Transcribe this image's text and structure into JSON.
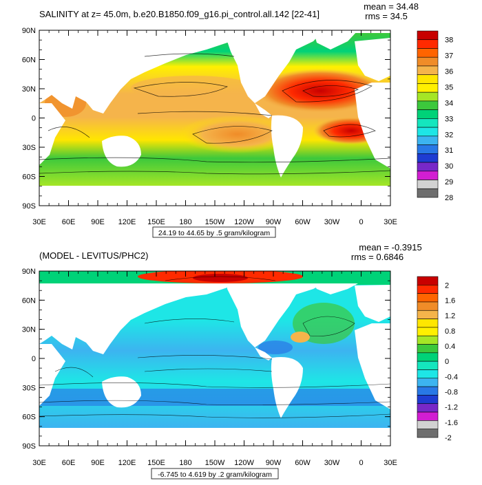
{
  "panels": [
    {
      "id": "top",
      "title": "SALINITY at z=  45.0m, b.e20.B1850.f09_g16.pi_control.all.142 [22-41]",
      "mean": "mean = 34.48",
      "rms": "rms = 34.5",
      "note": "24.19 to 44.65 by .5 gram/kilogram",
      "lat_labels": [
        "90N",
        "60N",
        "30N",
        "0",
        "30S",
        "60S",
        "90S"
      ],
      "lon_labels": [
        "30E",
        "60E",
        "90E",
        "120E",
        "150E",
        "180",
        "150W",
        "120W",
        "90W",
        "60W",
        "30W",
        "0",
        "30E"
      ],
      "colorbar_labels": [
        "38",
        "37",
        "36",
        "35",
        "34",
        "33",
        "32",
        "31",
        "30",
        "29",
        "28"
      ],
      "colorbar_colors": [
        "#c80000",
        "#ff2a00",
        "#ff6400",
        "#f08c28",
        "#f5b44b",
        "#ffe600",
        "#fff000",
        "#a5e626",
        "#3cc83c",
        "#00d278",
        "#14e6be",
        "#1ee6e6",
        "#3cb4f0",
        "#2878e6",
        "#1e3cd2",
        "#7828c8",
        "#d21ed2",
        "#d2d2d2",
        "#6e6e6e"
      ]
    },
    {
      "id": "bottom",
      "title": "(MODEL - LEVITUS/PHC2)",
      "mean": "mean = -0.3915",
      "rms": "rms = 0.6846",
      "note": "-6.745 to 4.619 by .2 gram/kilogram",
      "lat_labels": [
        "90N",
        "60N",
        "30N",
        "0",
        "30S",
        "60S",
        "90S"
      ],
      "lon_labels": [
        "30E",
        "60E",
        "90E",
        "120E",
        "150E",
        "180",
        "150W",
        "120W",
        "90W",
        "60W",
        "30W",
        "0",
        "30E"
      ],
      "colorbar_labels": [
        "2",
        "1.6",
        "1.2",
        "0.8",
        "0.4",
        "0",
        "-0.4",
        "-0.8",
        "-1.2",
        "-1.6",
        "-2"
      ],
      "colorbar_colors": [
        "#c80000",
        "#ff2a00",
        "#ff6400",
        "#f08c28",
        "#f5b44b",
        "#ffe600",
        "#fff000",
        "#a5e626",
        "#3cc83c",
        "#00d278",
        "#14e6be",
        "#1ee6e6",
        "#3cb4f0",
        "#2878e6",
        "#1e3cd2",
        "#7828c8",
        "#d21ed2",
        "#d2d2d2",
        "#6e6e6e"
      ]
    }
  ]
}
